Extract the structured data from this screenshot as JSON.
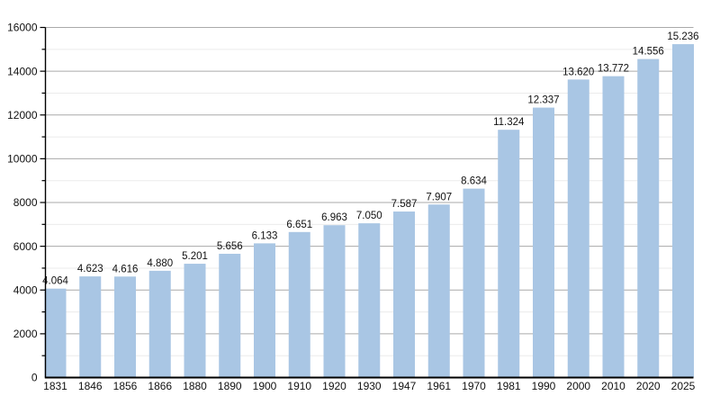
{
  "chart_data": {
    "type": "bar",
    "title": "",
    "xlabel": "",
    "ylabel": "",
    "categories": [
      "1831",
      "1846",
      "1856",
      "1866",
      "1880",
      "1890",
      "1900",
      "1910",
      "1920",
      "1930",
      "1947",
      "1961",
      "1970",
      "1981",
      "1990",
      "2000",
      "2010",
      "2020",
      "2025"
    ],
    "values": [
      4064,
      4623,
      4616,
      4880,
      5201,
      5656,
      6133,
      6651,
      6963,
      7050,
      7587,
      7907,
      8634,
      11324,
      12337,
      13620,
      13772,
      14556,
      15236
    ],
    "value_labels": [
      "4.064",
      "4.623",
      "4.616",
      "4.880",
      "5.201",
      "5.656",
      "6.133",
      "6.651",
      "6.963",
      "7.050",
      "7.587",
      "7.907",
      "8.634",
      "11.324",
      "12.337",
      "13.620",
      "13.772",
      "14.556",
      "15.236"
    ],
    "ylim": [
      0,
      16000
    ],
    "y_major_step": 2000,
    "y_minor_step": 1000,
    "y_tick_labels": [
      "0",
      "2000",
      "4000",
      "6000",
      "8000",
      "10000",
      "12000",
      "14000",
      "16000"
    ],
    "grid": "on",
    "legend_position": "none",
    "colors": {
      "bar_fill": "#a9c6e4",
      "major_grid": "#aaaaaa",
      "minor_grid": "#ebebeb",
      "axis": "#000000",
      "label_text": "#111111"
    }
  }
}
